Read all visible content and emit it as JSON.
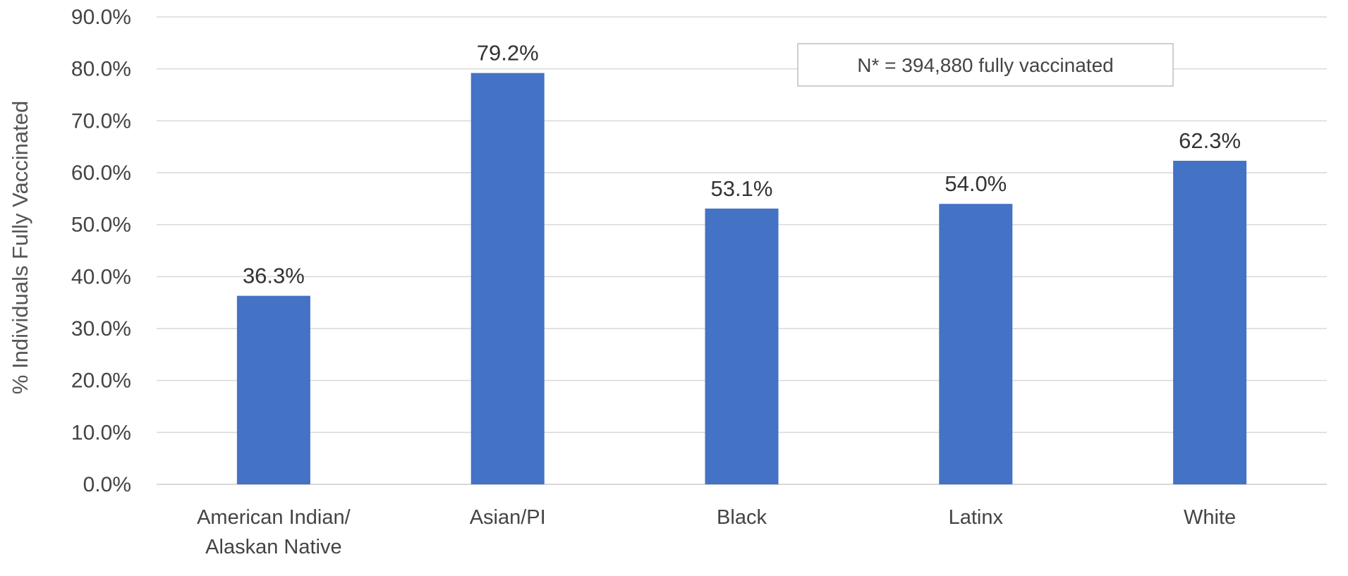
{
  "chart_data": {
    "type": "bar",
    "title": "",
    "xlabel": "",
    "ylabel": "% Individuals Fully Vaccinated",
    "ylim": [
      0,
      90
    ],
    "ytick_step": 10,
    "ytick_labels": [
      "0.0%",
      "10.0%",
      "20.0%",
      "30.0%",
      "40.0%",
      "50.0%",
      "60.0%",
      "70.0%",
      "80.0%",
      "90.0%"
    ],
    "grid": true,
    "legend": "none",
    "bar_color": "#4472c4",
    "categories": [
      [
        "American Indian/",
        "Alaskan Native"
      ],
      [
        "Asian/PI"
      ],
      [
        "Black"
      ],
      [
        "Latinx"
      ],
      [
        "White"
      ]
    ],
    "values": [
      36.3,
      79.2,
      53.1,
      54.0,
      62.3
    ],
    "data_labels": [
      "36.3%",
      "79.2%",
      "53.1%",
      "54.0%",
      "62.3%"
    ],
    "annotation": "N* = 394,880 fully vaccinated"
  }
}
